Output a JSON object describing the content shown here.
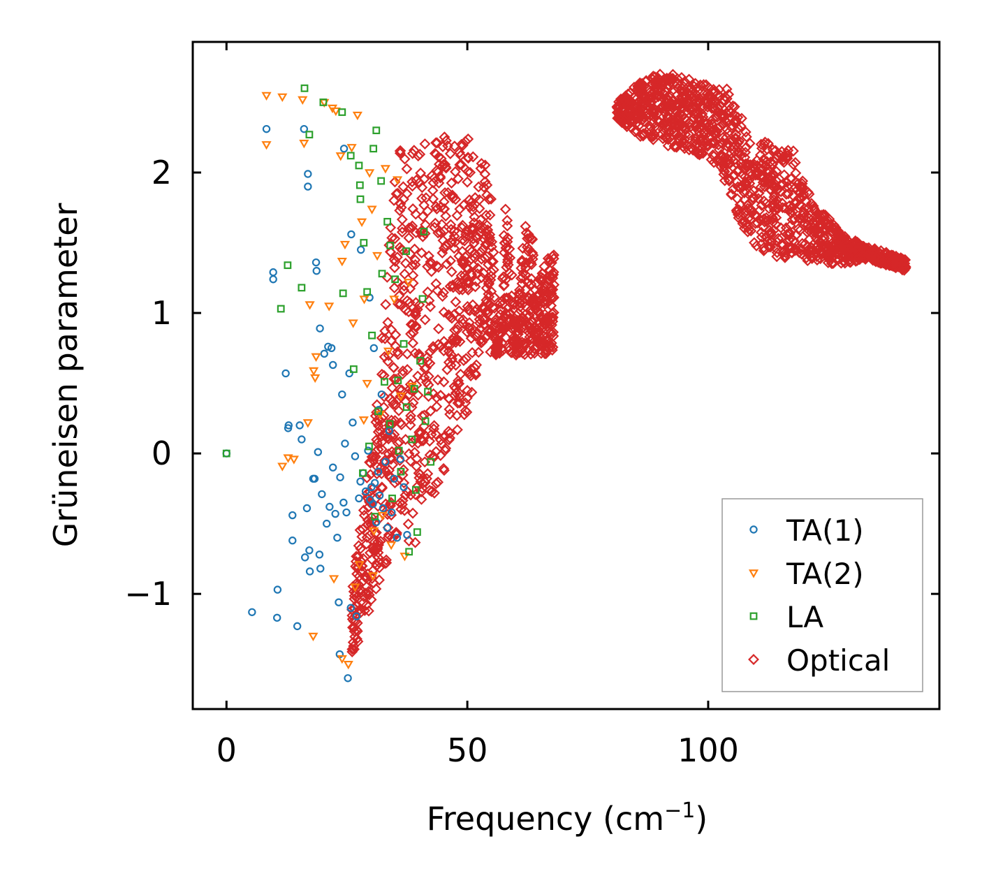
{
  "chart_data": {
    "type": "scatter",
    "title": "",
    "xlabel": "Frequency (cm",
    "xlabel_sup": "−1",
    "xlabel_end": ")",
    "ylabel": "Grüneisen parameter",
    "xlim": [
      -7,
      148
    ],
    "ylim": [
      -1.82,
      2.93
    ],
    "xticks": [
      0,
      50,
      100
    ],
    "xtick_labels": [
      "0",
      "50",
      "100"
    ],
    "yticks": [
      -1,
      0,
      1,
      2
    ],
    "ytick_labels": [
      "−1",
      "0",
      "1",
      "2"
    ],
    "legend_position": "lower-right",
    "colors": {
      "ta1": "#1f77b4",
      "ta2": "#ff7f0e",
      "la": "#2ca02c",
      "optical": "#d62728"
    },
    "series": [
      {
        "key": "ta1",
        "name": "TA(1)",
        "marker": "circle",
        "points": [
          [
            0,
            0
          ],
          [
            5.3,
            -1.13
          ],
          [
            8.3,
            2.31
          ],
          [
            9.7,
            1.29
          ],
          [
            9.7,
            1.24
          ],
          [
            10.5,
            -1.17
          ],
          [
            10.6,
            -0.97
          ],
          [
            12.3,
            0.57
          ],
          [
            12.8,
            0.18
          ],
          [
            12.9,
            0.2
          ],
          [
            13.7,
            -0.62
          ],
          [
            13.7,
            -0.44
          ],
          [
            14.7,
            -1.23
          ],
          [
            15.2,
            0.2
          ],
          [
            15.6,
            0.1
          ],
          [
            16.1,
            2.31
          ],
          [
            16.3,
            -0.74
          ],
          [
            16.7,
            -0.39
          ],
          [
            16.9,
            1.99
          ],
          [
            16.9,
            1.9
          ],
          [
            17.2,
            -0.69
          ],
          [
            17.3,
            -0.84
          ],
          [
            18.0,
            -0.18
          ],
          [
            18.3,
            -0.18
          ],
          [
            18.6,
            1.36
          ],
          [
            18.7,
            1.3
          ],
          [
            19.0,
            0.01
          ],
          [
            19.3,
            -0.72
          ],
          [
            19.4,
            0.89
          ],
          [
            19.5,
            -0.82
          ],
          [
            19.8,
            -0.29
          ],
          [
            20.3,
            0.71
          ],
          [
            20.8,
            -0.5
          ],
          [
            21.1,
            0.76
          ],
          [
            21.4,
            -0.38
          ],
          [
            21.8,
            0.75
          ],
          [
            22.1,
            0.63
          ],
          [
            22.1,
            -0.1
          ],
          [
            22.6,
            -0.43
          ],
          [
            23.0,
            -0.6
          ],
          [
            23.3,
            -1.06
          ],
          [
            23.5,
            -1.43
          ],
          [
            23.6,
            -0.17
          ],
          [
            24.0,
            0.42
          ],
          [
            24.3,
            -0.35
          ],
          [
            24.6,
            0.07
          ],
          [
            24.9,
            -0.42
          ],
          [
            25.2,
            -1.6
          ],
          [
            25.5,
            0.57
          ],
          [
            25.8,
            -1.1
          ],
          [
            26.2,
            0.22
          ],
          [
            26.7,
            -0.02
          ],
          [
            27.0,
            -1.16
          ],
          [
            27.5,
            -0.32
          ],
          [
            27.8,
            -0.2
          ],
          [
            28.4,
            -0.14
          ],
          [
            28.9,
            -0.27
          ],
          [
            29.4,
            0.02
          ],
          [
            29.8,
            -0.33
          ],
          [
            30.1,
            -0.24
          ],
          [
            30.4,
            -0.36
          ],
          [
            30.8,
            -0.21
          ],
          [
            31.1,
            -0.49
          ],
          [
            31.5,
            -0.13
          ],
          [
            31.8,
            -0.3
          ],
          [
            32.2,
            0.42
          ],
          [
            32.5,
            -0.39
          ],
          [
            33.0,
            -0.06
          ],
          [
            33.4,
            -0.53
          ],
          [
            33.8,
            0.16
          ],
          [
            34.3,
            -0.42
          ],
          [
            34.8,
            -0.18
          ],
          [
            35.4,
            -0.6
          ],
          [
            36.1,
            -0.04
          ],
          [
            36.8,
            -0.24
          ],
          [
            37.5,
            -0.58
          ],
          [
            24.4,
            2.17
          ],
          [
            25.9,
            1.56
          ],
          [
            27.9,
            1.45
          ],
          [
            29.7,
            1.11
          ],
          [
            30.6,
            0.75
          ],
          [
            31.6,
            0.31
          ]
        ]
      },
      {
        "key": "ta2",
        "name": "TA(2)",
        "marker": "triangle",
        "points": [
          [
            8.3,
            2.55
          ],
          [
            8.3,
            2.2
          ],
          [
            11.6,
            2.54
          ],
          [
            11.6,
            -0.09
          ],
          [
            12.8,
            -0.03
          ],
          [
            14.0,
            -0.04
          ],
          [
            15.8,
            2.52
          ],
          [
            16.1,
            2.21
          ],
          [
            16.9,
            0.22
          ],
          [
            17.3,
            1.06
          ],
          [
            18.1,
            0.59
          ],
          [
            18.4,
            0.54
          ],
          [
            18.6,
            0.69
          ],
          [
            18.0,
            -1.3
          ],
          [
            20.3,
            2.5
          ],
          [
            21.3,
            1.05
          ],
          [
            22.0,
            2.46
          ],
          [
            22.3,
            -0.89
          ],
          [
            22.7,
            2.44
          ],
          [
            23.7,
            2.12
          ],
          [
            24.0,
            -1.46
          ],
          [
            24.6,
            1.49
          ],
          [
            25.3,
            -1.5
          ],
          [
            26.0,
            2.18
          ],
          [
            26.7,
            -0.95
          ],
          [
            27.2,
            2.41
          ],
          [
            27.6,
            -0.79
          ],
          [
            28.1,
            1.65
          ],
          [
            28.6,
            1.1
          ],
          [
            29.2,
            0.5
          ],
          [
            29.7,
            2.0
          ],
          [
            30.2,
            1.74
          ],
          [
            30.6,
            -0.55
          ],
          [
            31.3,
            1.41
          ],
          [
            31.9,
            0.28
          ],
          [
            32.4,
            -0.44
          ],
          [
            33.0,
            2.03
          ],
          [
            33.6,
            0.73
          ],
          [
            34.2,
            -0.65
          ],
          [
            34.8,
            1.1
          ],
          [
            35.5,
            1.95
          ],
          [
            36.2,
            0.41
          ],
          [
            37.0,
            -0.73
          ],
          [
            37.8,
            1.22
          ],
          [
            38.5,
            0.48
          ],
          [
            24.0,
            1.37
          ],
          [
            26.3,
            0.93
          ],
          [
            28.5,
            0.24
          ],
          [
            30.4,
            -0.87
          ]
        ]
      },
      {
        "key": "la",
        "name": "LA",
        "marker": "square",
        "points": [
          [
            0,
            0
          ],
          [
            11.3,
            1.03
          ],
          [
            12.7,
            1.34
          ],
          [
            15.6,
            1.18
          ],
          [
            16.2,
            2.6
          ],
          [
            17.2,
            2.27
          ],
          [
            20.1,
            2.5
          ],
          [
            24.0,
            2.43
          ],
          [
            25.8,
            2.12
          ],
          [
            27.5,
            2.05
          ],
          [
            27.8,
            1.81
          ],
          [
            27.7,
            1.91
          ],
          [
            28.5,
            1.5
          ],
          [
            29.2,
            1.15
          ],
          [
            29.6,
            0.05
          ],
          [
            30.2,
            0.84
          ],
          [
            30.5,
            2.17
          ],
          [
            31.1,
            2.3
          ],
          [
            31.5,
            0.3
          ],
          [
            32.1,
            1.94
          ],
          [
            32.8,
            0.51
          ],
          [
            33.4,
            1.65
          ],
          [
            33.9,
            0.21
          ],
          [
            34.4,
            -0.32
          ],
          [
            35.0,
            1.24
          ],
          [
            35.6,
            0.52
          ],
          [
            36.2,
            -0.13
          ],
          [
            36.8,
            0.78
          ],
          [
            37.3,
            1.44
          ],
          [
            37.9,
            -0.7
          ],
          [
            38.5,
            0.1
          ],
          [
            39.0,
            0.46
          ],
          [
            39.6,
            -0.56
          ],
          [
            40.2,
            0.66
          ],
          [
            40.7,
            1.1
          ],
          [
            41.3,
            0.23
          ],
          [
            41.8,
            0.44
          ],
          [
            42.4,
            -0.06
          ],
          [
            24.2,
            1.14
          ],
          [
            26.4,
            0.6
          ],
          [
            28.3,
            -0.14
          ],
          [
            30.8,
            -0.45
          ],
          [
            32.3,
            1.28
          ],
          [
            34.0,
            1.48
          ],
          [
            35.8,
            0.02
          ],
          [
            37.4,
            0.33
          ],
          [
            39.3,
            -0.26
          ],
          [
            41.0,
            1.58
          ]
        ]
      }
    ],
    "optical": {
      "key": "optical",
      "name": "Optical",
      "marker": "diamond",
      "cluster1": {
        "upper": [
          [
            26,
            -1.0
          ],
          [
            28,
            -0.4
          ],
          [
            31,
            0.3
          ],
          [
            34,
            1.6
          ],
          [
            36,
            2.33
          ],
          [
            40,
            2.2
          ],
          [
            45,
            2.26
          ],
          [
            50,
            2.25
          ],
          [
            55,
            2.0
          ],
          [
            58,
            1.8
          ],
          [
            62,
            1.65
          ],
          [
            64,
            1.5
          ],
          [
            68,
            1.48
          ],
          [
            64,
            1.2
          ],
          [
            60,
            0.95
          ],
          [
            56,
            0.7
          ]
        ],
        "lower": [
          [
            26,
            -1.45
          ],
          [
            29,
            -1.2
          ],
          [
            32,
            -0.9
          ],
          [
            35,
            -0.6
          ],
          [
            38,
            -0.75
          ],
          [
            42,
            -0.4
          ],
          [
            46,
            -0.05
          ],
          [
            50,
            0.3
          ],
          [
            53,
            0.7
          ],
          [
            56,
            0.7
          ]
        ],
        "n": 1150
      },
      "cluster2": {
        "upper": [
          [
            81,
            2.5
          ],
          [
            86,
            2.65
          ],
          [
            90,
            2.72
          ],
          [
            95,
            2.68
          ],
          [
            100,
            2.62
          ],
          [
            104,
            2.6
          ],
          [
            106,
            2.45
          ],
          [
            108,
            2.32
          ],
          [
            110,
            2.25
          ],
          [
            114,
            2.2
          ],
          [
            118,
            2.15
          ],
          [
            122,
            1.8
          ],
          [
            128,
            1.55
          ],
          [
            133,
            1.48
          ],
          [
            138,
            1.42
          ],
          [
            141,
            1.38
          ]
        ],
        "lower": [
          [
            81,
            2.38
          ],
          [
            86,
            2.25
          ],
          [
            90,
            2.2
          ],
          [
            95,
            2.17
          ],
          [
            100,
            2.1
          ],
          [
            104,
            1.9
          ],
          [
            106,
            1.7
          ],
          [
            108,
            1.55
          ],
          [
            110,
            1.45
          ],
          [
            114,
            1.4
          ],
          [
            118,
            1.38
          ],
          [
            122,
            1.35
          ],
          [
            128,
            1.35
          ],
          [
            133,
            1.38
          ],
          [
            138,
            1.33
          ],
          [
            141,
            1.3
          ]
        ],
        "n": 1300
      }
    }
  }
}
